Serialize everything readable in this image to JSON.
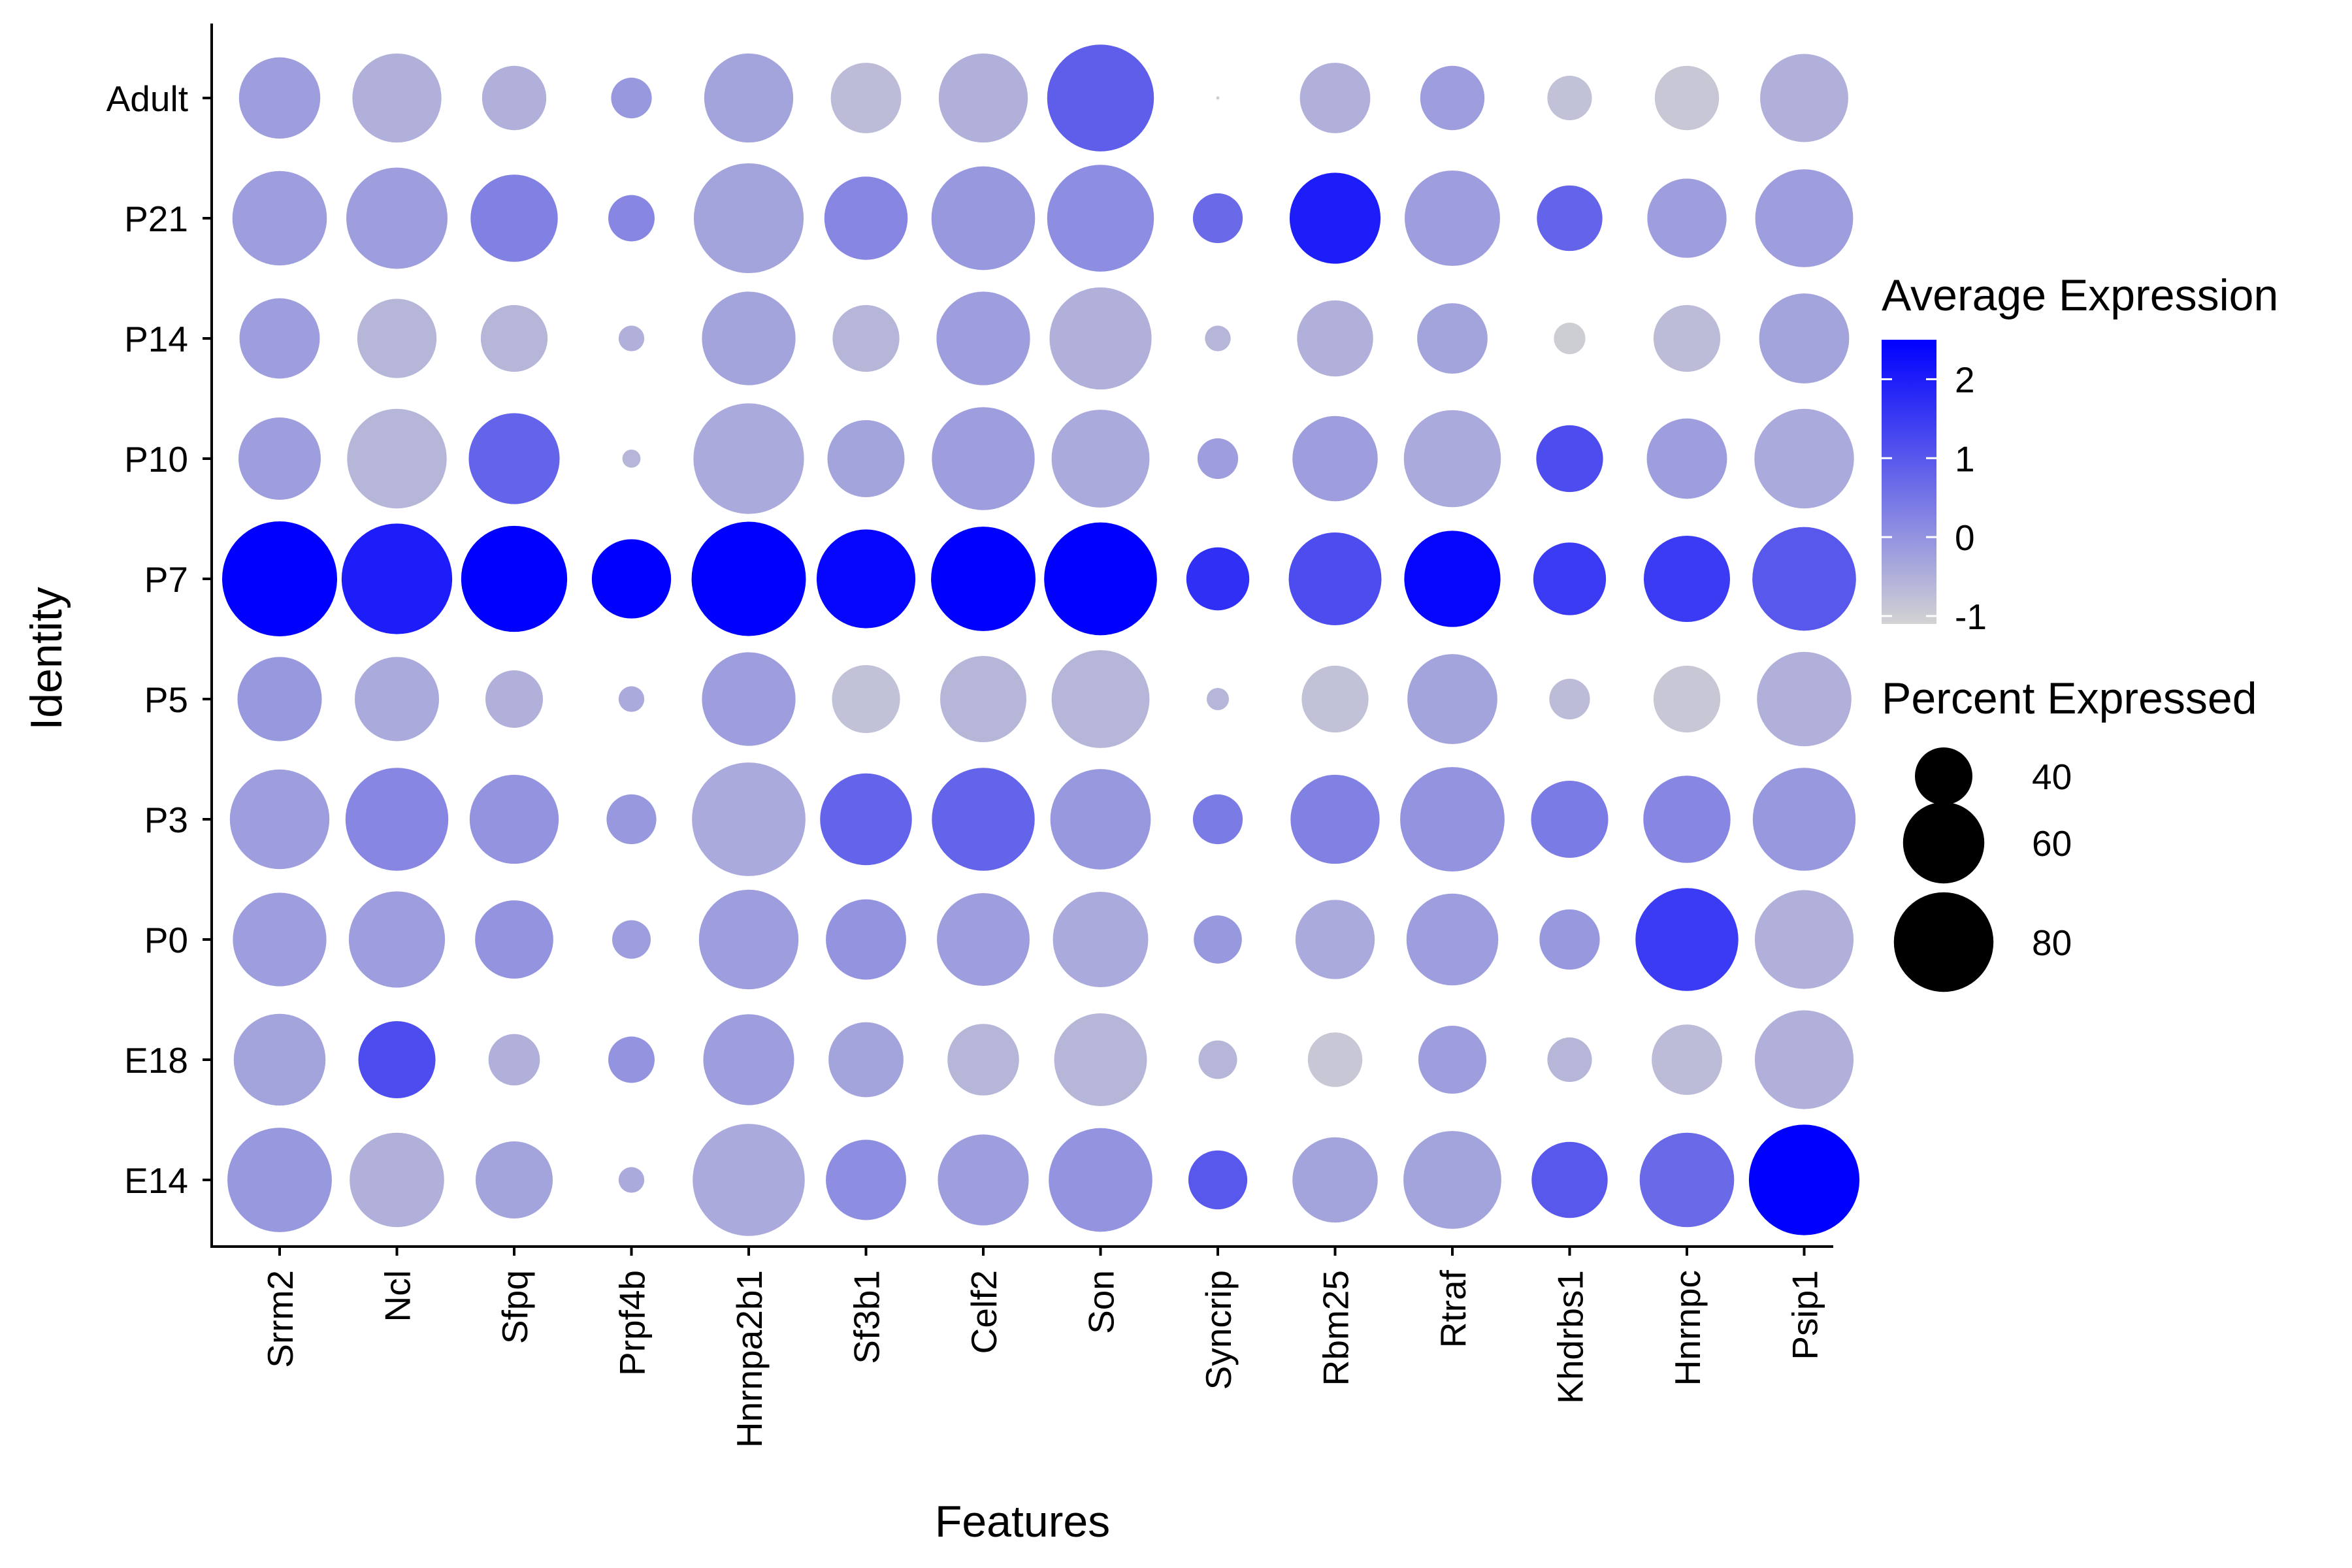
{
  "chart_data": {
    "type": "dot",
    "xlabel": "Features",
    "ylabel": "Identity",
    "features": [
      "Srrm2",
      "Ncl",
      "Sfpq",
      "Prpf4b",
      "Hnrnpa2b1",
      "Sf3b1",
      "Celf2",
      "Son",
      "Syncrip",
      "Rbm25",
      "Rtraf",
      "Khdrbs1",
      "Hnrnpc",
      "Psip1"
    ],
    "identities": [
      "Adult",
      "P21",
      "P14",
      "P10",
      "P7",
      "P5",
      "P3",
      "P0",
      "E18",
      "E14"
    ],
    "pct_expressed": {
      "Adult": [
        60,
        68,
        45,
        30,
        68,
        50,
        68,
        89,
        20,
        50,
        45,
        32,
        45,
        67
      ],
      "P21": [
        74,
        82,
        66,
        33,
        93,
        62,
        85,
        89,
        35,
        70,
        75,
        46,
        58,
        78
      ],
      "P14": [
        59,
        58,
        47,
        24,
        73,
        47,
        73,
        83,
        24,
        55,
        50,
        26,
        47,
        69
      ],
      "P10": [
        61,
        80,
        70,
        22,
        94,
        56,
        84,
        78,
        30,
        64,
        77,
        47,
        59,
        80
      ],
      "P7": [
        100,
        94,
        88,
        58,
        99,
        79,
        86,
        97,
        44,
        72,
        76,
        52,
        65,
        85
      ],
      "P5": [
        63,
        63,
        40,
        24,
        73,
        48,
        65,
        78,
        23,
        47,
        69,
        30,
        47,
        74
      ],
      "P3": [
        80,
        84,
        68,
        35,
        98,
        71,
        84,
        81,
        35,
        68,
        86,
        56,
        66,
        84
      ],
      "P0": [
        73,
        76,
        57,
        29,
        80,
        59,
        72,
        75,
        34,
        58,
        71,
        42,
        84,
        79
      ],
      "E18": [
        71,
        56,
        36,
        33,
        70,
        54,
        51,
        72,
        29,
        38,
        48,
        32,
        50,
        79
      ],
      "E14": [
        86,
        74,
        56,
        24,
        96,
        59,
        70,
        85,
        41,
        64,
        78,
        55,
        74,
        94
      ]
    },
    "avg_expression": {
      "Adult": [
        -0.2,
        -0.5,
        -0.5,
        -0.1,
        -0.3,
        -0.7,
        -0.5,
        0.9,
        -1.0,
        -0.5,
        -0.2,
        -0.8,
        -0.9,
        -0.5
      ],
      "P21": [
        -0.2,
        -0.2,
        0.3,
        0.2,
        -0.3,
        0.2,
        -0.1,
        0.1,
        0.7,
        2.0,
        -0.2,
        0.8,
        -0.2,
        -0.2
      ],
      "P14": [
        -0.2,
        -0.6,
        -0.6,
        -0.5,
        -0.3,
        -0.6,
        -0.2,
        -0.5,
        -0.6,
        -0.5,
        -0.3,
        -1.0,
        -0.7,
        -0.3
      ],
      "P10": [
        -0.2,
        -0.6,
        0.8,
        -0.6,
        -0.4,
        -0.3,
        -0.2,
        -0.4,
        -0.2,
        -0.2,
        -0.4,
        1.2,
        -0.2,
        -0.4
      ],
      "P7": [
        2.5,
        2.0,
        2.5,
        2.5,
        2.5,
        2.4,
        2.5,
        2.5,
        1.7,
        1.2,
        2.4,
        1.5,
        1.5,
        1.0
      ],
      "P5": [
        -0.1,
        -0.4,
        -0.5,
        -0.4,
        -0.2,
        -0.8,
        -0.6,
        -0.6,
        -0.6,
        -0.8,
        -0.3,
        -0.7,
        -0.9,
        -0.5
      ],
      "P3": [
        -0.2,
        0.2,
        0.0,
        -0.1,
        -0.4,
        0.8,
        0.8,
        -0.1,
        0.4,
        0.3,
        0.0,
        0.4,
        0.2,
        -0.1
      ],
      "P0": [
        -0.2,
        -0.2,
        0.0,
        -0.2,
        -0.2,
        0.0,
        -0.2,
        -0.4,
        -0.1,
        -0.4,
        -0.2,
        -0.1,
        1.5,
        -0.5
      ],
      "E18": [
        -0.3,
        1.2,
        -0.5,
        0.0,
        -0.2,
        -0.3,
        -0.6,
        -0.6,
        -0.6,
        -0.9,
        -0.2,
        -0.6,
        -0.7,
        -0.5
      ],
      "E14": [
        -0.1,
        -0.5,
        -0.3,
        -0.4,
        -0.4,
        0.1,
        -0.2,
        0.0,
        1.0,
        -0.3,
        -0.3,
        1.0,
        0.7,
        2.5
      ]
    },
    "color_legend": {
      "title": "Average Expression",
      "range": [
        -1.1,
        2.5
      ],
      "ticks": [
        -1,
        0,
        1,
        2
      ],
      "tick_labels": [
        "-1",
        "0",
        "1",
        "2"
      ],
      "low_color": "#d3d3d3",
      "high_color": "#0000ff"
    },
    "size_legend": {
      "title": "Percent Expressed",
      "values": [
        40,
        60,
        80
      ],
      "labels": [
        "40",
        "60",
        "80"
      ]
    },
    "grid": false,
    "legend_position": "right"
  }
}
